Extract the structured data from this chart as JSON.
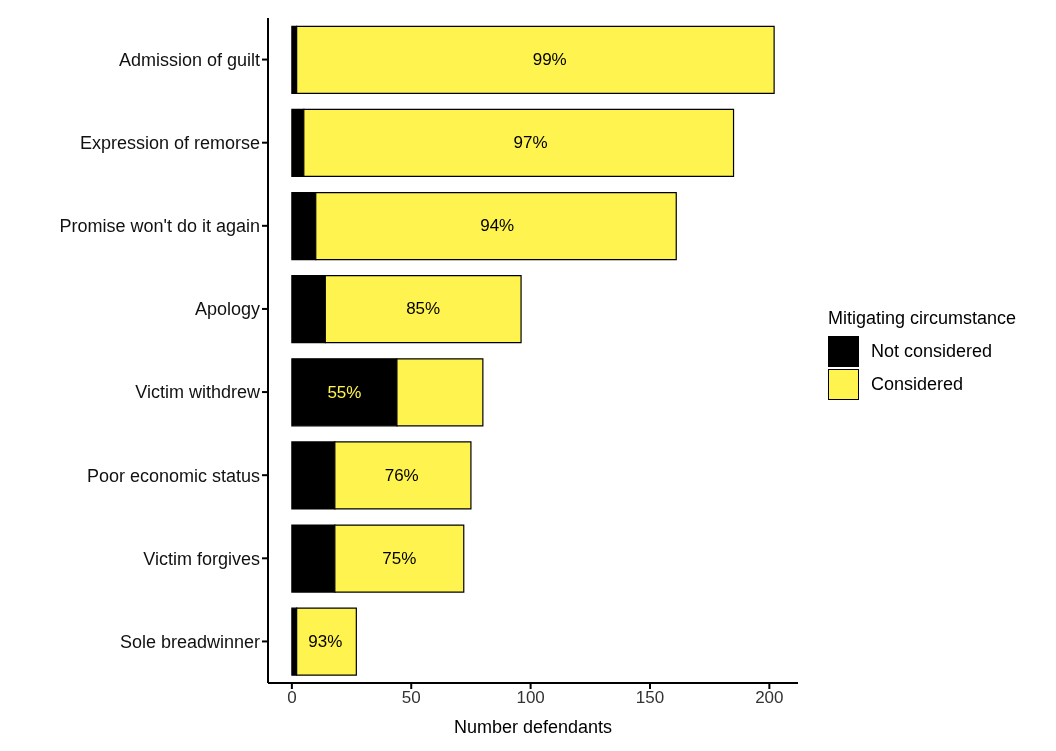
{
  "chart_data": {
    "type": "bar",
    "orientation": "horizontal",
    "stacked": true,
    "xlabel": "Number defendants",
    "legend_title": "Mitigating circumstance",
    "legend": "right",
    "categories": [
      "Admission of guilt",
      "Expression of remorse",
      "Promise won't do it again",
      "Apology",
      "Victim withdrew",
      "Poor economic status",
      "Victim forgives",
      "Sole breadwinner"
    ],
    "series": [
      {
        "name": "Not considered",
        "color": "#000000",
        "values": [
          2,
          5,
          10,
          14,
          44,
          18,
          18,
          2
        ]
      },
      {
        "name": "Considered",
        "color": "#fff44f",
        "values": [
          200,
          180,
          151,
          82,
          36,
          57,
          54,
          25
        ]
      }
    ],
    "annotations": [
      {
        "text": "99%",
        "x": 108,
        "y": "Admission of guilt"
      },
      {
        "text": "97%",
        "x": 100,
        "y": "Expression of remorse"
      },
      {
        "text": "94%",
        "x": 86,
        "y": "Promise won't do it again"
      },
      {
        "text": "85%",
        "x": 55,
        "y": "Apology"
      },
      {
        "text": "55%",
        "x": 22,
        "y": "Victim withdrew"
      },
      {
        "text": "76%",
        "x": 46,
        "y": "Poor economic status"
      },
      {
        "text": "75%",
        "x": 45,
        "y": "Victim forgives"
      },
      {
        "text": "93%",
        "x": 14,
        "y": "Sole breadwinner"
      }
    ],
    "xlim": [
      -10,
      212
    ],
    "xticks": [
      0,
      50,
      100,
      150,
      200
    ]
  }
}
